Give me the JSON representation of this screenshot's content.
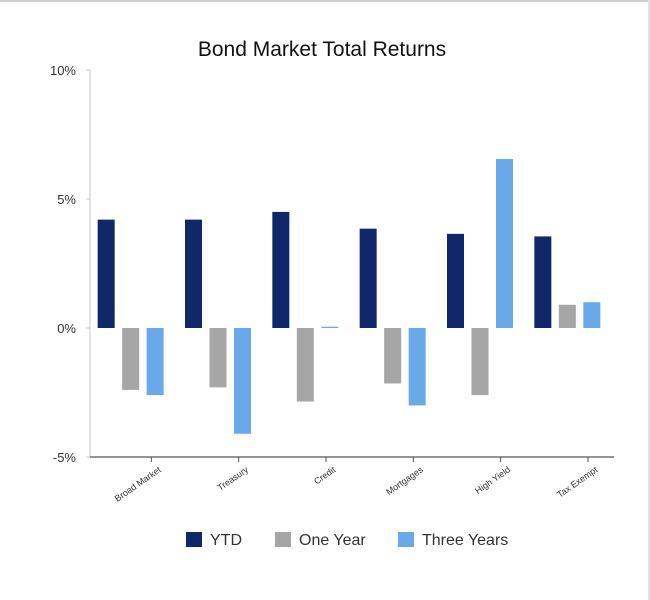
{
  "chart_data": {
    "type": "bar",
    "title": "Bond Market Total Returns",
    "xlabel": "",
    "ylabel": "",
    "categories": [
      "Broad Market",
      "Treasury",
      "Credit",
      "Mortgages",
      "High Yield",
      "Tax Exempt"
    ],
    "series": [
      {
        "name": "YTD",
        "color": "#10286a",
        "values": [
          4.2,
          4.2,
          4.5,
          3.85,
          3.65,
          3.55
        ]
      },
      {
        "name": "One Year",
        "color": "#a6a6a6",
        "values": [
          -2.4,
          -2.3,
          -2.85,
          -2.15,
          -2.6,
          0.9
        ]
      },
      {
        "name": "Three Years",
        "color": "#6aa9e9",
        "values": [
          -2.6,
          -4.1,
          0.05,
          -3.0,
          6.55,
          1.0
        ]
      }
    ],
    "ylim": [
      -5,
      10
    ],
    "yticks": [
      -5,
      0,
      5,
      10
    ],
    "ytick_labels": [
      "-5%",
      "0%",
      "5%",
      "10%"
    ],
    "grid": false,
    "legend_position": "bottom"
  }
}
